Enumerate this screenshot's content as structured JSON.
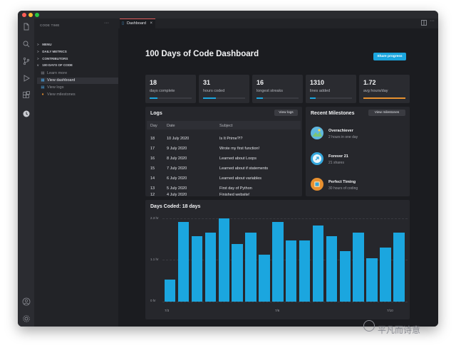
{
  "colors": {
    "accent": "#1ba6df",
    "tab_border": "#e05b5b",
    "bar": "#1ba6df",
    "progress_orange": "#e8902f"
  },
  "window_controls": {
    "close": "#ff5f57",
    "minimize": "#febc2e",
    "maximize": "#28c840"
  },
  "activity_bar": {
    "icons": [
      "files-icon",
      "search-icon",
      "source-control-icon",
      "debug-icon",
      "extensions-icon",
      "code-time-icon"
    ],
    "bottom_icons": [
      "account-icon",
      "settings-icon"
    ]
  },
  "sidebar": {
    "header": "CODE TIME",
    "more": "···",
    "sections": [
      {
        "label": "MENU",
        "chevron": ">"
      },
      {
        "label": "DAILY METRICS",
        "chevron": ">"
      },
      {
        "label": "CONTRIBUTORS",
        "chevron": ">"
      },
      {
        "label": "100 DAYS OF CODE",
        "chevron": "v"
      }
    ],
    "items": [
      {
        "label": "Learn more",
        "icon": "book-icon",
        "active": false
      },
      {
        "label": "View dashboard",
        "icon": "dashboard-icon",
        "active": true
      },
      {
        "label": "View logs",
        "icon": "logs-icon",
        "active": false
      },
      {
        "label": "View milestones",
        "icon": "milestone-icon",
        "active": false
      }
    ]
  },
  "tab": {
    "label": "Dashboard",
    "close": "×"
  },
  "dashboard": {
    "title": "100 Days of Code Dashboard",
    "share_button": "Share progress",
    "stats": [
      {
        "value": "18",
        "label": "days complete",
        "progress": 0.18
      },
      {
        "value": "31",
        "label": "hours coded",
        "progress": 0.31
      },
      {
        "value": "16",
        "label": "longest streaks",
        "progress": 0.16
      },
      {
        "value": "1310",
        "label": "lines added",
        "progress": 0.13
      },
      {
        "value": "1.72",
        "label": "avg hours/day",
        "progress": 1.0
      }
    ],
    "logs": {
      "title": "Logs",
      "button": "View logs",
      "columns": [
        "Day",
        "Date",
        "Subject"
      ],
      "rows": [
        [
          "18",
          "10 July 2020",
          "Is It Prime?!?"
        ],
        [
          "17",
          "9 July 2020",
          "Wrote my first function!"
        ],
        [
          "16",
          "8 July 2020",
          "Learned about Loops"
        ],
        [
          "15",
          "7 July 2020",
          "Learned about if statements"
        ],
        [
          "14",
          "6 July 2020",
          "Learned about variables"
        ],
        [
          "13",
          "5 July 2020",
          "First day of Python"
        ],
        [
          "12",
          "4 July 2020",
          "Finished website!"
        ]
      ]
    },
    "milestones": {
      "title": "Recent Milestones",
      "button": "View milestones",
      "items": [
        {
          "title": "Overachiever",
          "sub": "2 hours in one day",
          "icon": "overachiever-badge-icon",
          "color": "#5fb8e0"
        },
        {
          "title": "Forever 21",
          "sub": "21 shares",
          "icon": "share-badge-icon",
          "color": "#34a6dc"
        },
        {
          "title": "Perfect Timing",
          "sub": "30 hours of coding",
          "icon": "clock-badge-icon",
          "color": "#e8902f"
        }
      ]
    }
  },
  "chart_data": {
    "type": "bar",
    "title": "Days Coded: 18 days",
    "y_ticks": [
      "2.3 hr",
      "1.1 hr",
      "0 hr"
    ],
    "x_ticks": [
      "7/3",
      "7/6",
      "7/10"
    ],
    "ylim": [
      0,
      2.3
    ],
    "values": [
      0.6,
      2.2,
      1.8,
      1.9,
      2.3,
      1.6,
      1.9,
      1.3,
      2.2,
      1.7,
      1.7,
      2.1,
      1.8,
      1.4,
      1.9,
      1.2,
      1.5,
      1.9
    ],
    "grid": true
  },
  "watermark": "平凡而诗意"
}
